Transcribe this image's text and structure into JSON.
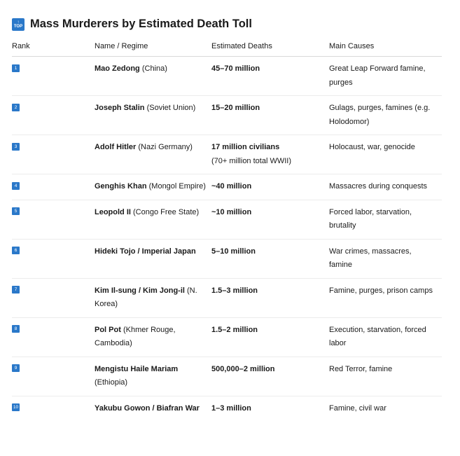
{
  "title": {
    "icon": "top-arrow-icon",
    "icon_text": "TOP",
    "text": "Mass Murderers by Estimated Death Toll"
  },
  "table": {
    "headers": [
      "Rank",
      "Name / Regime",
      "Estimated Deaths",
      "Main Causes"
    ],
    "rows": [
      {
        "rank": "1",
        "name": "Mao Zedong",
        "regime": "(China)",
        "deaths": "45–70 million",
        "deaths_note": "",
        "causes": "Great Leap Forward famine, purges"
      },
      {
        "rank": "2",
        "name": "Joseph Stalin",
        "regime": "(Soviet Union)",
        "deaths": "15–20 million",
        "deaths_note": "",
        "causes": "Gulags, purges, famines (e.g. Holodomor)"
      },
      {
        "rank": "3",
        "name": "Adolf Hitler",
        "regime": "(Nazi Germany)",
        "deaths": "17 million civilians",
        "deaths_note": "(70+ million total WWII)",
        "causes": "Holocaust, war, genocide"
      },
      {
        "rank": "4",
        "name": "Genghis Khan",
        "regime": "(Mongol Empire)",
        "deaths": "~40 million",
        "deaths_note": "",
        "causes": "Massacres during conquests"
      },
      {
        "rank": "5",
        "name": "Leopold II",
        "regime": "(Congo Free State)",
        "deaths": "~10 million",
        "deaths_note": "",
        "causes": "Forced labor, starvation, brutality"
      },
      {
        "rank": "6",
        "name": "Hideki Tojo / Imperial Japan",
        "regime": "",
        "deaths": "5–10 million",
        "deaths_note": "",
        "causes": "War crimes, massacres, famine"
      },
      {
        "rank": "7",
        "name": "Kim Il-sung / Kim Jong-il",
        "regime": "(N. Korea)",
        "deaths": "1.5–3 million",
        "deaths_note": "",
        "causes": "Famine, purges, prison camps"
      },
      {
        "rank": "8",
        "name": "Pol Pot",
        "regime": "(Khmer Rouge, Cambodia)",
        "deaths": "1.5–2 million",
        "deaths_note": "",
        "causes": "Execution, starvation, forced labor"
      },
      {
        "rank": "9",
        "name": "Mengistu Haile Mariam",
        "regime": "(Ethiopia)",
        "deaths": "500,000–2 million",
        "deaths_note": "",
        "causes": "Red Terror, famine"
      },
      {
        "rank": "10",
        "name": "Yakubu Gowon / Biafran War",
        "regime": "",
        "deaths": "1–3 million",
        "deaths_note": "",
        "causes": "Famine, civil war"
      }
    ]
  }
}
